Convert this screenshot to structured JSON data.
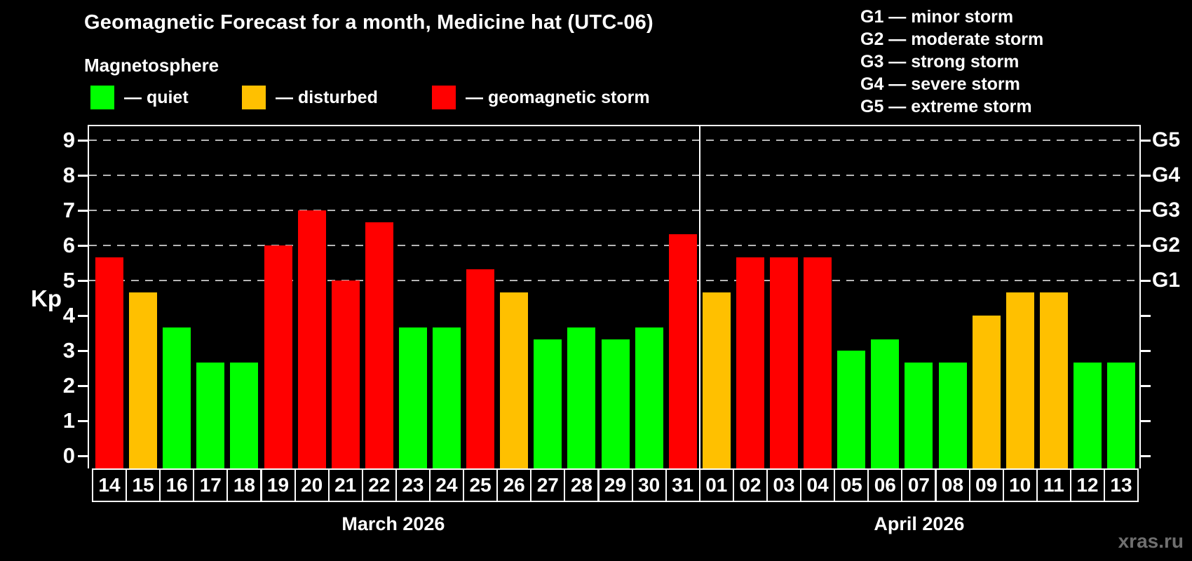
{
  "title": "Geomagnetic Forecast for a month, Medicine hat (UTC-06)",
  "watermark": "xras.ru",
  "colors": {
    "background": "#000000",
    "text": "#ffffff",
    "axis": "#ffffff",
    "gridline": "#b5b5b5",
    "quiet": "#00ff00",
    "disturbed": "#ffc000",
    "storm": "#ff0000",
    "watermark": "#6f6f6f"
  },
  "legend": {
    "title": "Magnetosphere",
    "items": [
      {
        "key": "quiet",
        "label": "— quiet",
        "color": "#00ff00"
      },
      {
        "key": "disturbed",
        "label": "— disturbed",
        "color": "#ffc000"
      },
      {
        "key": "storm",
        "label": "— geomagnetic storm",
        "color": "#ff0000"
      }
    ]
  },
  "g_legend": [
    "G1 — minor storm",
    "G2 — moderate storm",
    "G3 — strong storm",
    "G4 — severe storm",
    "G5 — extreme storm"
  ],
  "chart_data": {
    "type": "bar",
    "title": "Geomagnetic Forecast for a month, Medicine hat (UTC-06)",
    "ylabel": "Kp",
    "ylim": [
      0,
      9
    ],
    "yticks": [
      0,
      1,
      2,
      3,
      4,
      5,
      6,
      7,
      8,
      9
    ],
    "grid": "dashed horizontal lines at Kp 5–9",
    "legend_position": "top-left",
    "right_axis_labels": [
      {
        "label": "G1",
        "kp": 5
      },
      {
        "label": "G2",
        "kp": 6
      },
      {
        "label": "G3",
        "kp": 7
      },
      {
        "label": "G4",
        "kp": 8
      },
      {
        "label": "G5",
        "kp": 9
      }
    ],
    "months": [
      {
        "label": "March 2026",
        "days": [
          {
            "day": "14",
            "kp": 5.67,
            "condition": "storm"
          },
          {
            "day": "15",
            "kp": 4.67,
            "condition": "disturbed"
          },
          {
            "day": "16",
            "kp": 3.67,
            "condition": "quiet"
          },
          {
            "day": "17",
            "kp": 2.67,
            "condition": "quiet"
          },
          {
            "day": "18",
            "kp": 2.67,
            "condition": "quiet"
          },
          {
            "day": "19",
            "kp": 6.0,
            "condition": "storm"
          },
          {
            "day": "20",
            "kp": 7.0,
            "condition": "storm"
          },
          {
            "day": "21",
            "kp": 5.0,
            "condition": "storm"
          },
          {
            "day": "22",
            "kp": 6.67,
            "condition": "storm"
          },
          {
            "day": "23",
            "kp": 3.67,
            "condition": "quiet"
          },
          {
            "day": "24",
            "kp": 3.67,
            "condition": "quiet"
          },
          {
            "day": "25",
            "kp": 5.33,
            "condition": "storm"
          },
          {
            "day": "26",
            "kp": 4.67,
            "condition": "disturbed"
          },
          {
            "day": "27",
            "kp": 3.33,
            "condition": "quiet"
          },
          {
            "day": "28",
            "kp": 3.67,
            "condition": "quiet"
          },
          {
            "day": "29",
            "kp": 3.33,
            "condition": "quiet"
          },
          {
            "day": "30",
            "kp": 3.67,
            "condition": "quiet"
          },
          {
            "day": "31",
            "kp": 6.33,
            "condition": "storm"
          }
        ]
      },
      {
        "label": "April 2026",
        "days": [
          {
            "day": "01",
            "kp": 4.67,
            "condition": "disturbed"
          },
          {
            "day": "02",
            "kp": 5.67,
            "condition": "storm"
          },
          {
            "day": "03",
            "kp": 5.67,
            "condition": "storm"
          },
          {
            "day": "04",
            "kp": 5.67,
            "condition": "storm"
          },
          {
            "day": "05",
            "kp": 3.0,
            "condition": "quiet"
          },
          {
            "day": "06",
            "kp": 3.33,
            "condition": "quiet"
          },
          {
            "day": "07",
            "kp": 2.67,
            "condition": "quiet"
          },
          {
            "day": "08",
            "kp": 2.67,
            "condition": "quiet"
          },
          {
            "day": "09",
            "kp": 4.0,
            "condition": "disturbed"
          },
          {
            "day": "10",
            "kp": 4.67,
            "condition": "disturbed"
          },
          {
            "day": "11",
            "kp": 4.67,
            "condition": "disturbed"
          },
          {
            "day": "12",
            "kp": 2.67,
            "condition": "quiet"
          },
          {
            "day": "13",
            "kp": 2.67,
            "condition": "quiet"
          }
        ]
      }
    ]
  }
}
